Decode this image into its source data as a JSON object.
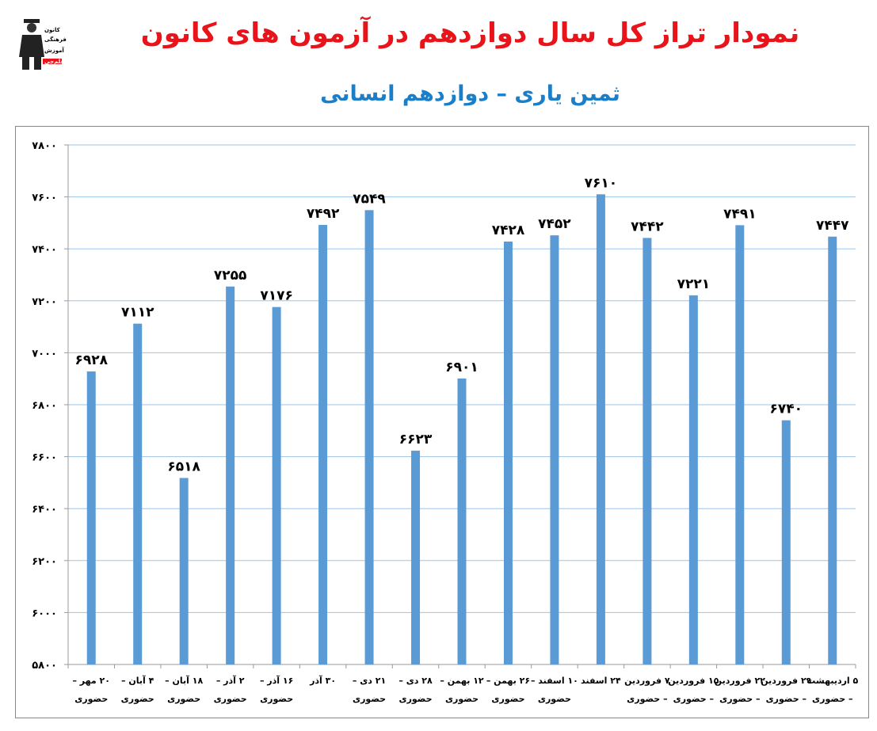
{
  "header": {
    "title": "نمودار تراز کل سال دوازدهم در آزمون های کانون",
    "subtitle": "ثمین یاری – دوازدهم انسانی",
    "logo": {
      "icon": "graduate-figure-icon",
      "text_lines": [
        "کانون",
        "فرهنگی",
        "آموزش",
        "قلم‌چی"
      ]
    }
  },
  "colors": {
    "title": "#e8141a",
    "subtitle": "#1a7ec8",
    "bar": "#5b9bd5",
    "grid": "#9dc3e6"
  },
  "chart_data": {
    "type": "bar",
    "title": "",
    "xlabel": "",
    "ylabel": "",
    "ylim": [
      5800,
      7800
    ],
    "yticks": [
      "۵۸۰۰",
      "۶۰۰۰",
      "۶۲۰۰",
      "۶۴۰۰",
      "۶۶۰۰",
      "۶۸۰۰",
      "۷۰۰۰",
      "۷۲۰۰",
      "۷۴۰۰",
      "۷۶۰۰",
      "۷۸۰۰"
    ],
    "grid": true,
    "legend": "none",
    "categories": [
      [
        "۲۰ مهر –",
        "حضوری"
      ],
      [
        "۴ آبان –",
        "حضوری"
      ],
      [
        "۱۸ آبان –",
        "حضوری"
      ],
      [
        "۲ آذر –",
        "حضوری"
      ],
      [
        "۱۶ آذر –",
        "حضوری"
      ],
      [
        "۳۰ آذر",
        ""
      ],
      [
        "۲۱ دی –",
        "حضوری"
      ],
      [
        "۲۸ دی –",
        "حضوری"
      ],
      [
        "۱۲ بهمن –",
        "حضوری"
      ],
      [
        "۲۶ بهمن –",
        "حضوری"
      ],
      [
        "۱۰ اسفند –",
        "حضوری"
      ],
      [
        "۲۴ اسفند",
        ""
      ],
      [
        "۷ فروردین",
        "– حضوری"
      ],
      [
        "۱۵ فروردین",
        "– حضوری"
      ],
      [
        "۲۲ فروردین",
        "– حضوری"
      ],
      [
        "۲۹ فروردین",
        "– حضوری"
      ],
      [
        "۵ اردیبهشت",
        "– حضوری"
      ]
    ],
    "values": [
      6928,
      7112,
      6518,
      7255,
      7176,
      7492,
      7549,
      6623,
      6901,
      7428,
      7452,
      7610,
      7442,
      7221,
      7491,
      6740,
      7447
    ],
    "data_labels": [
      "۶۹۲۸",
      "۷۱۱۲",
      "۶۵۱۸",
      "۷۲۵۵",
      "۷۱۷۶",
      "۷۴۹۲",
      "۷۵۴۹",
      "۶۶۲۳",
      "۶۹۰۱",
      "۷۴۲۸",
      "۷۴۵۲",
      "۷۶۱۰",
      "۷۴۴۲",
      "۷۲۲۱",
      "۷۴۹۱",
      "۶۷۴۰",
      "۷۴۴۷"
    ]
  }
}
